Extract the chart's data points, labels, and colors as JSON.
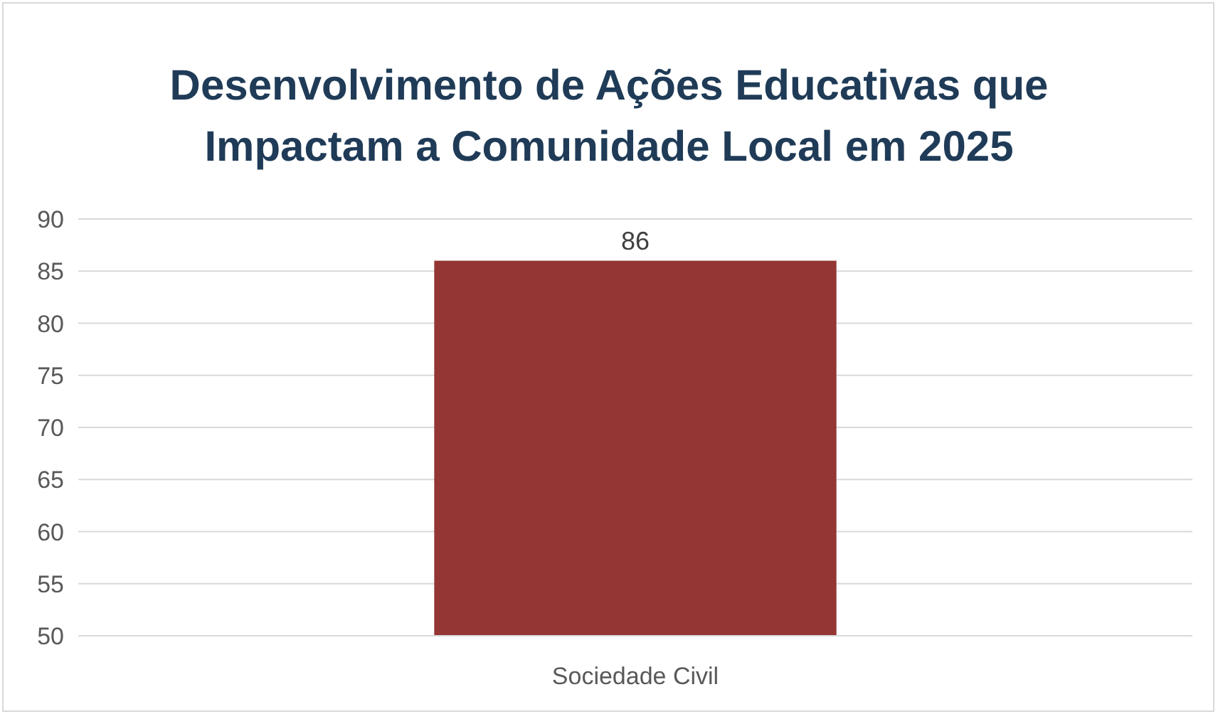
{
  "chart_data": {
    "type": "bar",
    "title": "Desenvolvimento de Ações Educativas que Impactam a Comunidade Local em 2025",
    "categories": [
      "Sociedade Civil"
    ],
    "values": [
      86
    ],
    "color": "#943634",
    "ylim": [
      50,
      90
    ],
    "yticks": [
      50,
      55,
      60,
      65,
      70,
      75,
      80,
      85,
      90
    ],
    "grid": "y",
    "data_labels": true
  }
}
